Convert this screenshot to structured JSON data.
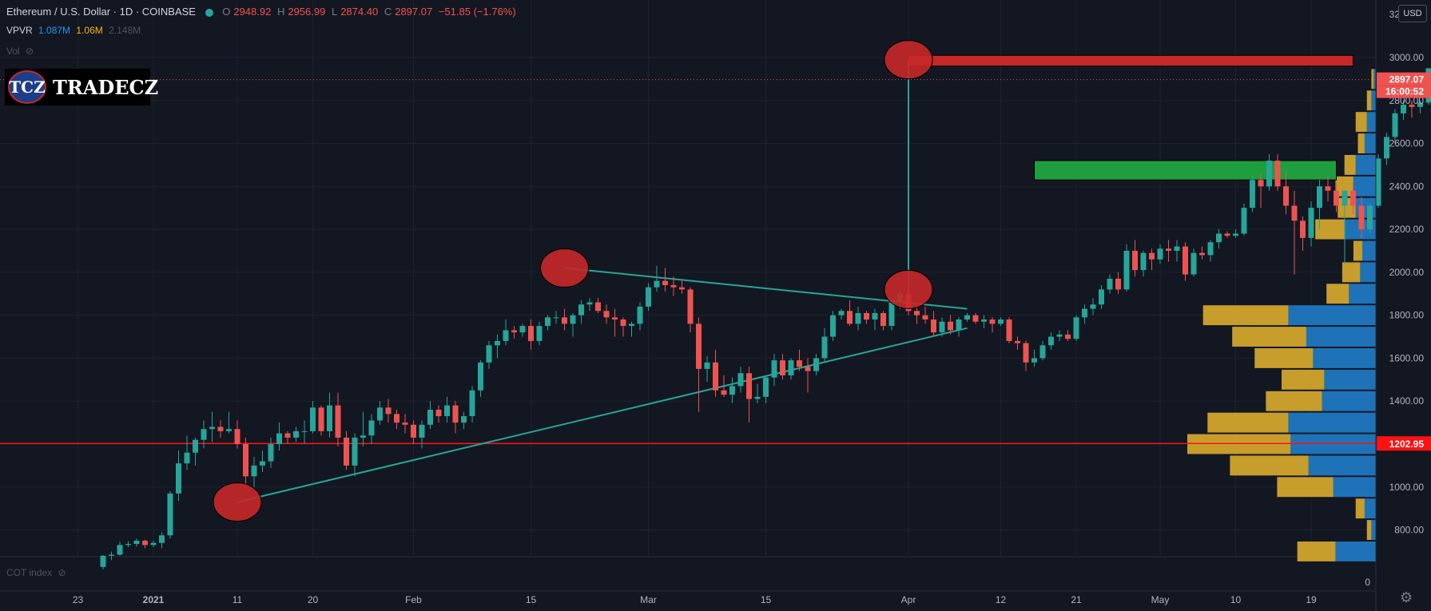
{
  "header": {
    "symbol": "Ethereum / U.S. Dollar · 1D · COINBASE",
    "open_label": "O",
    "open": "2948.92",
    "high_label": "H",
    "high": "2956.99",
    "low_label": "L",
    "low": "2874.40",
    "close_label": "C",
    "close": "2897.07",
    "change": "−51.85 (−1.76%)"
  },
  "indicators": {
    "vpvr_label": "VPVR",
    "vpvr_up": "1.087M",
    "vpvr_down": "1.06M",
    "vpvr_total": "2.148M",
    "vol_label": "Vol",
    "cot_label": "COT index"
  },
  "logo": {
    "badge": "TCZ",
    "name": "TRADECZ"
  },
  "price_axis": {
    "currency_button": "USD",
    "last_price": "2897.07",
    "countdown": "16:00:52",
    "line_price_label": "1202.95",
    "bottom_label": "0",
    "top_label": "3200.00"
  },
  "colors": {
    "background": "#131722",
    "up": "#26a69a",
    "down": "#ef5350",
    "vp_up": "#1e73b8",
    "vp_down": "#c79d2c",
    "horizontal_line": "#ff1111",
    "trendline": "#26a69a",
    "zone_green": "#1e9e3e",
    "zone_red": "#c62828",
    "marker": "#c62828"
  },
  "chart_data": {
    "type": "candlestick",
    "title": "Ethereum / U.S. Dollar",
    "timeframe": "1D",
    "exchange": "COINBASE",
    "ylim": [
      600,
      3200
    ],
    "y_ticks": [
      800,
      1000,
      1200,
      1400,
      1600,
      1800,
      2000,
      2200,
      2400,
      2600,
      2800,
      3000
    ],
    "x_ticks": [
      {
        "label": "23",
        "date": "2020-12-23"
      },
      {
        "label": "2021",
        "date": "2021-01-01"
      },
      {
        "label": "11",
        "date": "2021-01-11"
      },
      {
        "label": "20",
        "date": "2021-01-20"
      },
      {
        "label": "Feb",
        "date": "2021-02-01"
      },
      {
        "label": "15",
        "date": "2021-02-15"
      },
      {
        "label": "Mar",
        "date": "2021-03-01"
      },
      {
        "label": "15",
        "date": "2021-03-15"
      },
      {
        "label": "Apr",
        "date": "2021-04-01"
      },
      {
        "label": "12",
        "date": "2021-04-12"
      },
      {
        "label": "21",
        "date": "2021-04-21"
      },
      {
        "label": "May",
        "date": "2021-05-01"
      },
      {
        "label": "10",
        "date": "2021-05-10"
      },
      {
        "label": "19",
        "date": "2021-05-19"
      }
    ],
    "candles_start_date": "2020-12-26",
    "candles_ohlc": [
      [
        628,
        683,
        616,
        680
      ],
      [
        680,
        700,
        660,
        685
      ],
      [
        685,
        745,
        680,
        730
      ],
      [
        730,
        748,
        720,
        735
      ],
      [
        735,
        760,
        723,
        750
      ],
      [
        750,
        755,
        715,
        730
      ],
      [
        730,
        750,
        720,
        740
      ],
      [
        740,
        790,
        715,
        775
      ],
      [
        775,
        980,
        760,
        970
      ],
      [
        970,
        1170,
        935,
        1110
      ],
      [
        1110,
        1240,
        1080,
        1160
      ],
      [
        1160,
        1230,
        1100,
        1220
      ],
      [
        1220,
        1310,
        1180,
        1270
      ],
      [
        1270,
        1350,
        1210,
        1280
      ],
      [
        1280,
        1310,
        1230,
        1260
      ],
      [
        1260,
        1350,
        1250,
        1270
      ],
      [
        1270,
        1310,
        1180,
        1200
      ],
      [
        1200,
        1230,
        990,
        1050
      ],
      [
        1050,
        1140,
        1000,
        1100
      ],
      [
        1100,
        1170,
        1070,
        1120
      ],
      [
        1120,
        1230,
        1090,
        1200
      ],
      [
        1200,
        1300,
        1170,
        1250
      ],
      [
        1250,
        1260,
        1200,
        1230
      ],
      [
        1230,
        1280,
        1210,
        1260
      ],
      [
        1260,
        1310,
        1200,
        1260
      ],
      [
        1260,
        1400,
        1250,
        1370
      ],
      [
        1370,
        1380,
        1240,
        1260
      ],
      [
        1260,
        1440,
        1230,
        1380
      ],
      [
        1380,
        1440,
        1190,
        1230
      ],
      [
        1230,
        1260,
        1080,
        1100
      ],
      [
        1100,
        1250,
        1050,
        1230
      ],
      [
        1230,
        1350,
        1190,
        1240
      ],
      [
        1240,
        1340,
        1200,
        1310
      ],
      [
        1310,
        1400,
        1290,
        1370
      ],
      [
        1370,
        1410,
        1300,
        1340
      ],
      [
        1340,
        1360,
        1270,
        1300
      ],
      [
        1300,
        1340,
        1250,
        1290
      ],
      [
        1290,
        1310,
        1200,
        1230
      ],
      [
        1230,
        1310,
        1180,
        1290
      ],
      [
        1290,
        1400,
        1270,
        1360
      ],
      [
        1360,
        1380,
        1300,
        1330
      ],
      [
        1330,
        1420,
        1300,
        1380
      ],
      [
        1380,
        1400,
        1250,
        1300
      ],
      [
        1300,
        1350,
        1270,
        1330
      ],
      [
        1330,
        1470,
        1300,
        1450
      ],
      [
        1450,
        1590,
        1420,
        1580
      ],
      [
        1580,
        1680,
        1550,
        1660
      ],
      [
        1660,
        1710,
        1600,
        1680
      ],
      [
        1680,
        1780,
        1660,
        1730
      ],
      [
        1730,
        1750,
        1690,
        1720
      ],
      [
        1720,
        1760,
        1700,
        1750
      ],
      [
        1750,
        1780,
        1640,
        1680
      ],
      [
        1680,
        1770,
        1660,
        1750
      ],
      [
        1750,
        1800,
        1730,
        1790
      ],
      [
        1790,
        1820,
        1760,
        1790
      ],
      [
        1790,
        1830,
        1730,
        1760
      ],
      [
        1760,
        1810,
        1700,
        1800
      ],
      [
        1800,
        1870,
        1760,
        1850
      ],
      [
        1850,
        1880,
        1820,
        1860
      ],
      [
        1860,
        1880,
        1810,
        1820
      ],
      [
        1820,
        1850,
        1760,
        1790
      ],
      [
        1790,
        1830,
        1700,
        1780
      ],
      [
        1780,
        1790,
        1700,
        1750
      ],
      [
        1750,
        1770,
        1700,
        1760
      ],
      [
        1760,
        1860,
        1730,
        1840
      ],
      [
        1840,
        1950,
        1820,
        1930
      ],
      [
        1930,
        2030,
        1910,
        1960
      ],
      [
        1960,
        2020,
        1910,
        1940
      ],
      [
        1940,
        1980,
        1890,
        1930
      ],
      [
        1930,
        1960,
        1900,
        1920
      ],
      [
        1920,
        1930,
        1720,
        1760
      ],
      [
        1760,
        1790,
        1350,
        1550
      ],
      [
        1550,
        1610,
        1490,
        1580
      ],
      [
        1580,
        1640,
        1420,
        1450
      ],
      [
        1450,
        1520,
        1420,
        1430
      ],
      [
        1430,
        1510,
        1390,
        1470
      ],
      [
        1470,
        1560,
        1440,
        1530
      ],
      [
        1530,
        1560,
        1300,
        1410
      ],
      [
        1410,
        1480,
        1390,
        1420
      ],
      [
        1420,
        1520,
        1390,
        1510
      ],
      [
        1510,
        1620,
        1470,
        1590
      ],
      [
        1590,
        1620,
        1500,
        1520
      ],
      [
        1520,
        1600,
        1500,
        1590
      ],
      [
        1590,
        1640,
        1540,
        1560
      ],
      [
        1560,
        1600,
        1440,
        1540
      ],
      [
        1540,
        1620,
        1520,
        1600
      ],
      [
        1600,
        1740,
        1580,
        1700
      ],
      [
        1700,
        1820,
        1680,
        1800
      ],
      [
        1800,
        1830,
        1780,
        1820
      ],
      [
        1820,
        1870,
        1750,
        1760
      ],
      [
        1760,
        1840,
        1730,
        1810
      ],
      [
        1810,
        1820,
        1760,
        1780
      ],
      [
        1780,
        1830,
        1730,
        1810
      ],
      [
        1810,
        1820,
        1730,
        1750
      ],
      [
        1750,
        1880,
        1730,
        1860
      ],
      [
        1860,
        1920,
        1830,
        1900
      ],
      [
        1900,
        1930,
        1800,
        1820
      ],
      [
        1820,
        1850,
        1760,
        1800
      ],
      [
        1800,
        1840,
        1760,
        1780
      ],
      [
        1780,
        1820,
        1700,
        1720
      ],
      [
        1720,
        1790,
        1700,
        1770
      ],
      [
        1770,
        1800,
        1710,
        1730
      ],
      [
        1730,
        1790,
        1700,
        1780
      ],
      [
        1780,
        1810,
        1770,
        1800
      ],
      [
        1800,
        1810,
        1760,
        1770
      ],
      [
        1770,
        1800,
        1740,
        1780
      ],
      [
        1780,
        1790,
        1720,
        1760
      ],
      [
        1760,
        1790,
        1750,
        1780
      ],
      [
        1780,
        1790,
        1670,
        1680
      ],
      [
        1680,
        1700,
        1640,
        1670
      ],
      [
        1670,
        1680,
        1540,
        1580
      ],
      [
        1580,
        1640,
        1560,
        1600
      ],
      [
        1600,
        1680,
        1590,
        1660
      ],
      [
        1660,
        1720,
        1640,
        1700
      ],
      [
        1700,
        1730,
        1680,
        1710
      ],
      [
        1710,
        1730,
        1680,
        1690
      ],
      [
        1690,
        1800,
        1680,
        1790
      ],
      [
        1790,
        1850,
        1760,
        1830
      ],
      [
        1830,
        1880,
        1800,
        1850
      ],
      [
        1850,
        1940,
        1830,
        1920
      ],
      [
        1920,
        1990,
        1900,
        1970
      ],
      [
        1970,
        2000,
        1900,
        1920
      ],
      [
        1920,
        2130,
        1910,
        2100
      ],
      [
        2100,
        2150,
        1980,
        2010
      ],
      [
        2010,
        2100,
        1980,
        2090
      ],
      [
        2090,
        2110,
        2010,
        2060
      ],
      [
        2060,
        2130,
        2040,
        2110
      ],
      [
        2110,
        2150,
        2050,
        2100
      ],
      [
        2100,
        2150,
        2050,
        2120
      ],
      [
        2120,
        2140,
        1960,
        1990
      ],
      [
        1990,
        2110,
        1980,
        2090
      ],
      [
        2090,
        2120,
        2060,
        2080
      ],
      [
        2080,
        2150,
        2050,
        2140
      ],
      [
        2140,
        2200,
        2110,
        2180
      ],
      [
        2180,
        2190,
        2160,
        2170
      ],
      [
        2170,
        2200,
        2160,
        2180
      ],
      [
        2180,
        2320,
        2170,
        2300
      ],
      [
        2300,
        2450,
        2280,
        2430
      ],
      [
        2430,
        2460,
        2300,
        2400
      ],
      [
        2400,
        2550,
        2380,
        2520
      ],
      [
        2520,
        2550,
        2380,
        2400
      ],
      [
        2400,
        2470,
        2270,
        2310
      ],
      [
        2310,
        2380,
        1990,
        2240
      ],
      [
        2240,
        2260,
        2100,
        2160
      ],
      [
        2160,
        2330,
        2120,
        2300
      ],
      [
        2300,
        2430,
        2200,
        2400
      ],
      [
        2400,
        2450,
        2330,
        2380
      ],
      [
        2380,
        2420,
        2280,
        2310
      ],
      [
        2310,
        2320,
        2040,
        2380
      ],
      [
        2380,
        2420,
        2270,
        2310
      ],
      [
        2310,
        2350,
        2160,
        2200
      ],
      [
        2200,
        2320,
        2180,
        2310
      ],
      [
        2310,
        2550,
        2300,
        2530
      ],
      [
        2530,
        2650,
        2500,
        2630
      ],
      [
        2630,
        2760,
        2600,
        2740
      ],
      [
        2740,
        2800,
        2710,
        2780
      ],
      [
        2780,
        2800,
        2720,
        2770
      ],
      [
        2770,
        2800,
        2740,
        2790
      ],
      [
        2790,
        2950,
        2780,
        2950
      ],
      [
        2948.92,
        2956.99,
        2874.4,
        2897.07
      ]
    ],
    "horizontal_line": 1202.95,
    "trendlines": [
      {
        "from": {
          "date": "2021-01-11",
          "price": 930
        },
        "to": {
          "date": "2021-04-08",
          "price": 1740
        }
      },
      {
        "from": {
          "date": "2021-02-19",
          "price": 2020
        },
        "to": {
          "date": "2021-04-08",
          "price": 1830
        }
      }
    ],
    "vertical_line": {
      "date": "2021-04-01",
      "from": 1850,
      "to": 2990
    },
    "zones": [
      {
        "color": "green",
        "from_date": "2021-04-16",
        "to_date": "2021-05-22",
        "low": 2430,
        "high": 2520
      },
      {
        "color": "red",
        "from_date": "2021-04-01",
        "to_date": "2021-05-24",
        "low": 2960,
        "high": 3010
      }
    ],
    "markers": [
      {
        "date": "2021-01-11",
        "price": 930
      },
      {
        "date": "2021-02-19",
        "price": 2020
      },
      {
        "date": "2021-04-01",
        "price": 1920
      },
      {
        "date": "2021-04-01",
        "price": 2990
      }
    ],
    "volume_profile": {
      "bins": [
        {
          "price": 700,
          "up": 18,
          "down": 17
        },
        {
          "price": 800,
          "up": 2,
          "down": 2
        },
        {
          "price": 900,
          "up": 5,
          "down": 4
        },
        {
          "price": 1000,
          "up": 19,
          "down": 25
        },
        {
          "price": 1100,
          "up": 30,
          "down": 35
        },
        {
          "price": 1200,
          "up": 38,
          "down": 46
        },
        {
          "price": 1300,
          "up": 39,
          "down": 36
        },
        {
          "price": 1400,
          "up": 24,
          "down": 25
        },
        {
          "price": 1500,
          "up": 23,
          "down": 19
        },
        {
          "price": 1600,
          "up": 28,
          "down": 26
        },
        {
          "price": 1700,
          "up": 31,
          "down": 33
        },
        {
          "price": 1800,
          "up": 39,
          "down": 38
        },
        {
          "price": 1900,
          "up": 12,
          "down": 10
        },
        {
          "price": 2000,
          "up": 7,
          "down": 8
        },
        {
          "price": 2100,
          "up": 6,
          "down": 4
        },
        {
          "price": 2200,
          "up": 14,
          "down": 13
        },
        {
          "price": 2300,
          "up": 9,
          "down": 8
        },
        {
          "price": 2400,
          "up": 10,
          "down": 8
        },
        {
          "price": 2500,
          "up": 9,
          "down": 5
        },
        {
          "price": 2600,
          "up": 5,
          "down": 3
        },
        {
          "price": 2700,
          "up": 4,
          "down": 5
        },
        {
          "price": 2800,
          "up": 2,
          "down": 2
        },
        {
          "price": 2900,
          "up": 1,
          "down": 1
        }
      ]
    }
  }
}
